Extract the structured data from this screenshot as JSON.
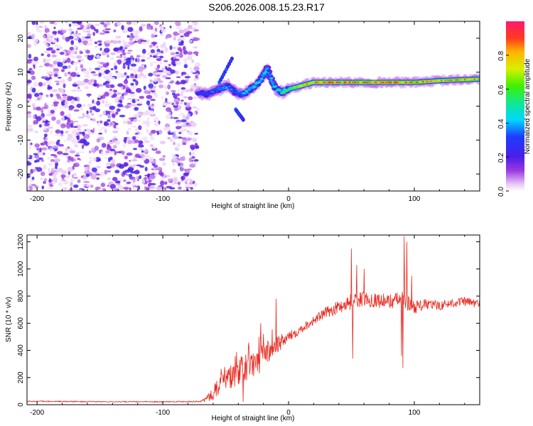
{
  "title": "S206.2026.008.15.23.R17",
  "chart_data": [
    {
      "type": "heatmap",
      "name": "spectrogram",
      "xlabel": "Height of straight line (km)",
      "ylabel": "Frequency (Hz)",
      "xlim": [
        -208,
        152
      ],
      "ylim": [
        -25,
        25
      ],
      "xticks": [
        -200,
        -100,
        0,
        100
      ],
      "xtick_labels": [
        "-200",
        "-100",
        "0",
        "100"
      ],
      "yticks": [
        20,
        10,
        0,
        -10,
        -20
      ],
      "ytick_labels": [
        "20",
        "10",
        "0",
        "-10",
        "-20"
      ],
      "noise_region_x": [
        -208,
        -72
      ],
      "ridge": {
        "x": [
          -72,
          -65,
          -55,
          -48,
          -42,
          -36,
          -30,
          -24,
          -20,
          -17,
          -14,
          -10,
          -5,
          0,
          10,
          20,
          40,
          60,
          80,
          100,
          120,
          152
        ],
        "freq": [
          4,
          3.5,
          5,
          6,
          4,
          3.5,
          5,
          7,
          9,
          11,
          8,
          5,
          4,
          5,
          6,
          7,
          7,
          7,
          7,
          7,
          7.5,
          8
        ],
        "amplitude": [
          0.3,
          0.35,
          0.4,
          0.4,
          0.35,
          0.45,
          0.5,
          0.5,
          0.5,
          0.45,
          0.45,
          0.5,
          0.55,
          0.6,
          0.8,
          0.9,
          0.95,
          0.9,
          0.95,
          0.9,
          0.85,
          0.85
        ]
      },
      "colorbar": {
        "label": "Normalized spectral amplitude",
        "range": [
          0,
          1
        ],
        "ticks": [
          0.0,
          0.2,
          0.4,
          0.6,
          0.8
        ],
        "tick_labels": [
          "0.0",
          "0.2",
          "0.4",
          "0.6",
          "0.8"
        ]
      }
    },
    {
      "type": "line",
      "name": "snr",
      "xlabel": "Height of straight line (km)",
      "ylabel": "SNR (10 * v/v)",
      "xlim": [
        -208,
        152
      ],
      "ylim": [
        0,
        1250
      ],
      "xticks": [
        -200,
        -100,
        0,
        100
      ],
      "xtick_labels": [
        "-200",
        "-100",
        "0",
        "100"
      ],
      "yticks": [
        0,
        200,
        400,
        600,
        800,
        1000,
        1200
      ],
      "ytick_labels": [
        "0",
        "200",
        "400",
        "600",
        "800",
        "1000",
        "1200"
      ],
      "series": [
        {
          "name": "SNR",
          "color": "#e8281e",
          "x": [
            -208,
            -150,
            -100,
            -70,
            -62,
            -55,
            -48,
            -42,
            -36,
            -30,
            -24,
            -18,
            -12,
            -6,
            0,
            10,
            20,
            30,
            40,
            50,
            60,
            70,
            80,
            90,
            100,
            110,
            120,
            130,
            140,
            152
          ],
          "values": [
            25,
            22,
            22,
            24,
            60,
            150,
            200,
            230,
            260,
            290,
            330,
            380,
            430,
            460,
            500,
            560,
            620,
            680,
            720,
            760,
            780,
            770,
            760,
            780,
            720,
            740,
            730,
            750,
            760,
            740
          ],
          "noise": [
            4,
            4,
            4,
            5,
            40,
            70,
            90,
            100,
            110,
            110,
            110,
            100,
            80,
            60,
            40,
            35,
            35,
            40,
            50,
            60,
            55,
            55,
            55,
            60,
            50,
            40,
            35,
            35,
            35,
            35
          ]
        }
      ],
      "spikes": [
        {
          "x": 50,
          "y": 1150
        },
        {
          "x": 51,
          "y": 340
        },
        {
          "x": 54,
          "y": 1030
        },
        {
          "x": 60,
          "y": 1000
        },
        {
          "x": 92,
          "y": 1240
        },
        {
          "x": 91,
          "y": 270
        },
        {
          "x": 94,
          "y": 1200
        },
        {
          "x": 90,
          "y": 360
        },
        {
          "x": 98,
          "y": 950
        },
        {
          "x": -22,
          "y": 600
        },
        {
          "x": -10,
          "y": 780
        },
        {
          "x": -36,
          "y": 20
        }
      ]
    }
  ]
}
